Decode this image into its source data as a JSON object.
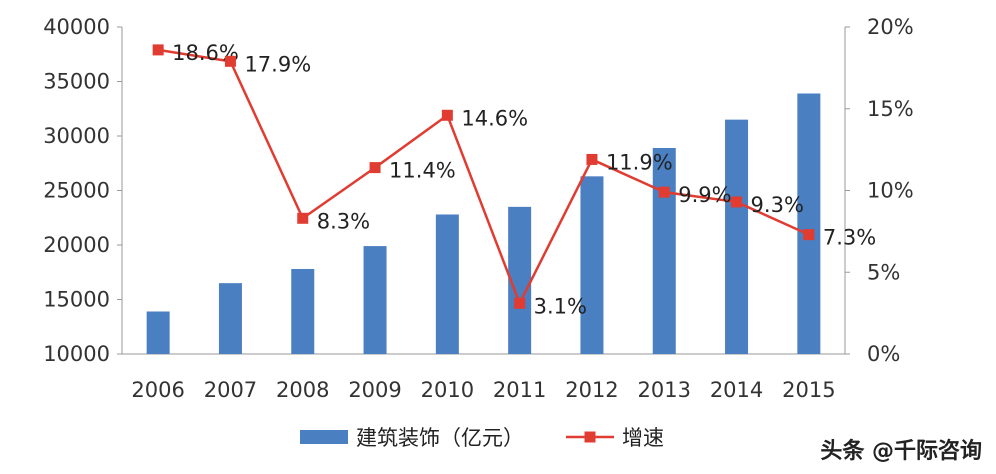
{
  "chart_data": {
    "type": "bar",
    "categories": [
      "2006",
      "2007",
      "2008",
      "2009",
      "2010",
      "2011",
      "2012",
      "2013",
      "2014",
      "2015"
    ],
    "series": [
      {
        "name": "建筑装饰（亿元）",
        "type": "bar",
        "axis": "left",
        "color": "#4a7fc1",
        "values": [
          13900,
          16500,
          17800,
          19900,
          22800,
          23500,
          26300,
          28900,
          31500,
          33900
        ]
      },
      {
        "name": "增速",
        "type": "line",
        "axis": "right",
        "color": "#e03c31",
        "values": [
          18.6,
          17.9,
          8.3,
          11.4,
          14.6,
          3.1,
          11.9,
          9.9,
          9.3,
          7.3
        ],
        "labels": [
          "18.6%",
          "17.9%",
          "8.3%",
          "11.4%",
          "14.6%",
          "3.1%",
          "11.9%",
          "9.9%",
          "9.3%",
          "7.3%"
        ]
      }
    ],
    "ylim": [
      10000,
      40000
    ],
    "y_ticks": [
      "10000",
      "15000",
      "20000",
      "25000",
      "30000",
      "35000",
      "40000"
    ],
    "y2lim": [
      0,
      20
    ],
    "y2_ticks": [
      "0%",
      "5%",
      "10%",
      "15%",
      "20%"
    ],
    "grid": false,
    "legend_position": "bottom"
  },
  "watermark": "头条 @千际咨询"
}
